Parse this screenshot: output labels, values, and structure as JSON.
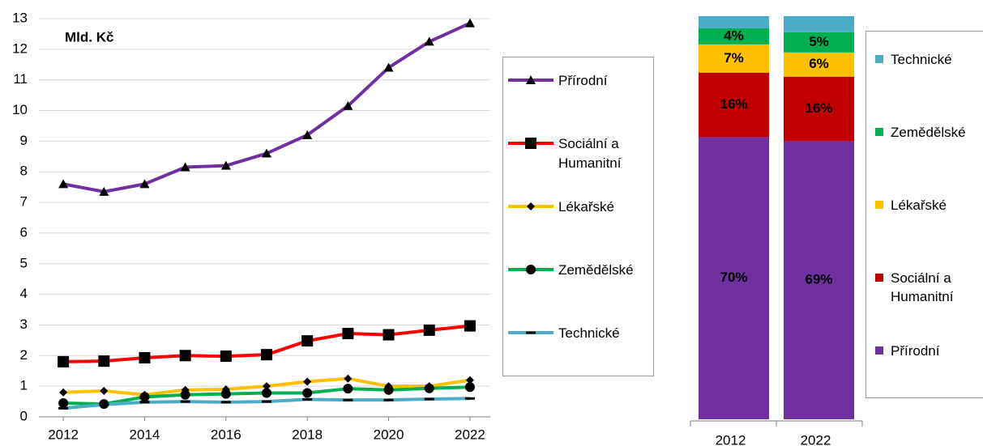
{
  "chart_data": [
    {
      "type": "line",
      "annotation": "Mld. Kč",
      "x": [
        2012,
        2013,
        2014,
        2015,
        2016,
        2017,
        2018,
        2019,
        2020,
        2021,
        2022
      ],
      "xlim": [
        2011.4,
        2022.5
      ],
      "xticks": [
        2012,
        2014,
        2016,
        2018,
        2020,
        2022
      ],
      "ylim": [
        0,
        13
      ],
      "yticks": [
        0,
        1,
        2,
        3,
        4,
        5,
        6,
        7,
        8,
        9,
        10,
        11,
        12,
        13
      ],
      "grid": true,
      "legend": "right",
      "series": [
        {
          "name": "Přírodní",
          "color": "#7030a0",
          "marker": "triangle",
          "values": [
            7.6,
            7.35,
            7.6,
            8.15,
            8.2,
            8.6,
            9.2,
            10.15,
            11.4,
            12.25,
            12.85
          ]
        },
        {
          "name": "Sociální a Humanitní",
          "color": "#ff0000",
          "marker": "square",
          "values": [
            1.8,
            1.82,
            1.93,
            2.0,
            1.98,
            2.03,
            2.48,
            2.72,
            2.68,
            2.83,
            2.97
          ]
        },
        {
          "name": "Lékařské",
          "color": "#ffc000",
          "marker": "diamond",
          "values": [
            0.8,
            0.85,
            0.72,
            0.88,
            0.9,
            1.0,
            1.15,
            1.25,
            1.0,
            1.0,
            1.2
          ]
        },
        {
          "name": "Zemědělské",
          "color": "#00b050",
          "marker": "circle",
          "values": [
            0.45,
            0.42,
            0.65,
            0.72,
            0.75,
            0.78,
            0.78,
            0.92,
            0.88,
            0.93,
            0.97
          ]
        },
        {
          "name": "Technické",
          "color": "#4bacc6",
          "marker": "dash",
          "values": [
            0.28,
            0.4,
            0.48,
            0.5,
            0.48,
            0.5,
            0.57,
            0.55,
            0.55,
            0.58,
            0.6
          ]
        }
      ]
    },
    {
      "type": "stacked_bar",
      "categories": [
        "2012",
        "2022"
      ],
      "ylim": [
        0,
        100
      ],
      "legend": "right",
      "series": [
        {
          "name": "Přírodní",
          "color": "#7030a0",
          "label_color": "#ffffff",
          "values": [
            70,
            69
          ],
          "value_labels": [
            "70%",
            "69%"
          ]
        },
        {
          "name": "Sociální a Humanitní",
          "color": "#c00000",
          "label_color": "#ffffff",
          "values": [
            16,
            16
          ],
          "value_labels": [
            "16%",
            "16%"
          ]
        },
        {
          "name": "Lékařské",
          "color": "#ffc000",
          "label_color": "#000000",
          "values": [
            7,
            6
          ],
          "value_labels": [
            "7%",
            "6%"
          ]
        },
        {
          "name": "Zemědělské",
          "color": "#00b050",
          "label_color": "#000000",
          "values": [
            4,
            5
          ],
          "value_labels": [
            "4%",
            "5%"
          ]
        },
        {
          "name": "Technické",
          "color": "#4bacc6",
          "values": [
            3,
            4
          ]
        }
      ]
    }
  ]
}
